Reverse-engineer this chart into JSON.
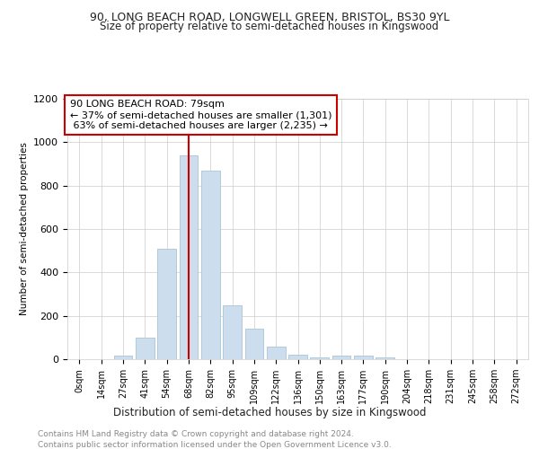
{
  "title_line1": "90, LONG BEACH ROAD, LONGWELL GREEN, BRISTOL, BS30 9YL",
  "title_line2": "Size of property relative to semi-detached houses in Kingswood",
  "xlabel": "Distribution of semi-detached houses by size in Kingswood",
  "ylabel": "Number of semi-detached properties",
  "footer_line1": "Contains HM Land Registry data © Crown copyright and database right 2024.",
  "footer_line2": "Contains public sector information licensed under the Open Government Licence v3.0.",
  "annotation_line1": "90 LONG BEACH ROAD: 79sqm",
  "annotation_line2": "← 37% of semi-detached houses are smaller (1,301)",
  "annotation_line3": " 63% of semi-detached houses are larger (2,235) →",
  "bar_color": "#ccdded",
  "bar_edge_color": "#a8c4d8",
  "subject_line_color": "#cc0000",
  "annotation_box_color": "#ffffff",
  "annotation_box_edge": "#cc0000",
  "categories": [
    "0sqm",
    "14sqm",
    "27sqm",
    "41sqm",
    "54sqm",
    "68sqm",
    "82sqm",
    "95sqm",
    "109sqm",
    "122sqm",
    "136sqm",
    "150sqm",
    "163sqm",
    "177sqm",
    "190sqm",
    "204sqm",
    "218sqm",
    "231sqm",
    "245sqm",
    "258sqm",
    "272sqm"
  ],
  "bar_heights": [
    0,
    2,
    15,
    100,
    510,
    940,
    870,
    250,
    140,
    60,
    20,
    8,
    15,
    15,
    8,
    2,
    2,
    0,
    0,
    2,
    0
  ],
  "ylim": [
    0,
    1200
  ],
  "yticks": [
    0,
    200,
    400,
    600,
    800,
    1000,
    1200
  ],
  "subject_bar_index": 5,
  "background_color": "#ffffff",
  "grid_color": "#cccccc"
}
